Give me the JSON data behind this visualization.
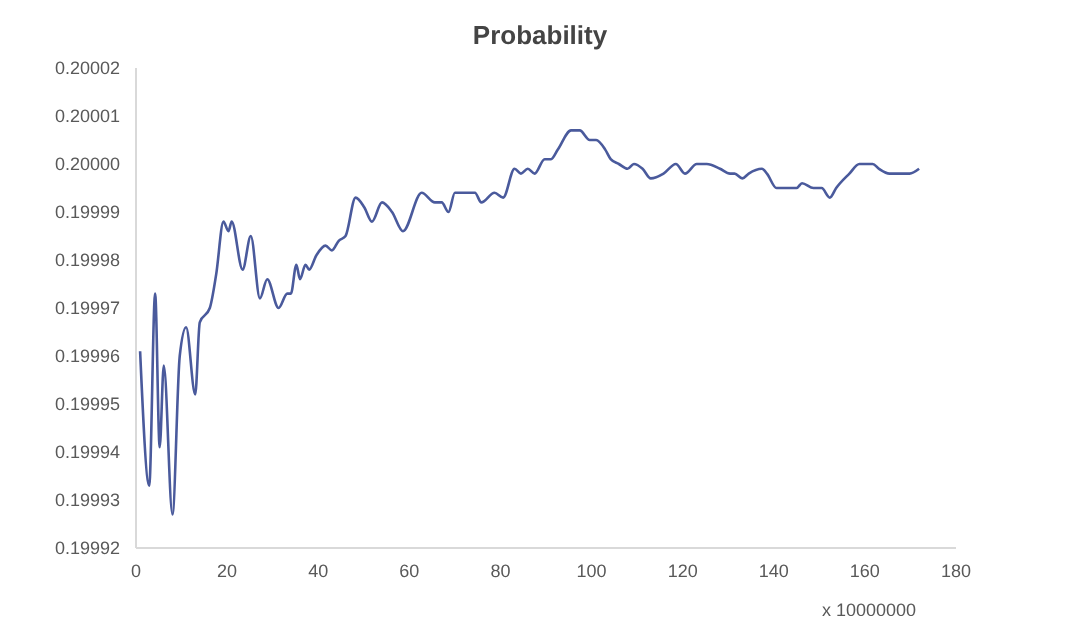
{
  "chart_data": {
    "type": "line",
    "title": "Probability",
    "xlabel": "x 10000000",
    "x": [
      0.9,
      2.9,
      4.2,
      5.2,
      6.1,
      8.0,
      9.6,
      11,
      13,
      14,
      16.2,
      17.6,
      19.2,
      20.3,
      21,
      23.4,
      25.2,
      27.2,
      28.8,
      31.3,
      33.2,
      34,
      35.2,
      36,
      37.2,
      38,
      39.6,
      41.6,
      43,
      44.5,
      46,
      48.2,
      50.1,
      51.8,
      54,
      56.2,
      58.6,
      62.7,
      65.6,
      67.1,
      68.6,
      70,
      74.4,
      75.8,
      78.7,
      80.6,
      83.1,
      84.5,
      86,
      87.5,
      89.7,
      91.1,
      92.6,
      95.5,
      97.4,
      99.6,
      101,
      103,
      104.2,
      106,
      107.9,
      109.3,
      111.2,
      113,
      115.8,
      118.5,
      120.5,
      123.1,
      125.3,
      128.2,
      130.4,
      131.4,
      133.1,
      134.5,
      137.4,
      138.5,
      140.6,
      144.2,
      145,
      146.2,
      148.7,
      150.5,
      152.3,
      153.7,
      156.6,
      158.8,
      161.7,
      163.1,
      165.4,
      166.9,
      169.8,
      171.9
    ],
    "series": [
      {
        "color": "#4a5a9c",
        "values": [
          0.199961,
          0.199933,
          0.199973,
          0.199941,
          0.199958,
          0.199927,
          0.19996,
          0.199966,
          0.199952,
          0.199967,
          0.19997,
          0.199977,
          0.199988,
          0.199986,
          0.199988,
          0.199978,
          0.199985,
          0.199972,
          0.199976,
          0.19997,
          0.199973,
          0.199973,
          0.199979,
          0.199976,
          0.199979,
          0.199978,
          0.199981,
          0.199983,
          0.199982,
          0.199984,
          0.199985,
          0.199993,
          0.199991,
          0.199988,
          0.199992,
          0.19999,
          0.199986,
          0.199994,
          0.199992,
          0.199992,
          0.19999,
          0.199994,
          0.199994,
          0.199992,
          0.199994,
          0.199993,
          0.199999,
          0.199998,
          0.199999,
          0.199998,
          0.200001,
          0.200001,
          0.200003,
          0.200007,
          0.200007,
          0.200005,
          0.200005,
          0.200003,
          0.200001,
          0.2,
          0.199999,
          0.2,
          0.199999,
          0.199997,
          0.199998,
          0.2,
          0.199998,
          0.2,
          0.2,
          0.199999,
          0.199998,
          0.199998,
          0.199997,
          0.199998,
          0.199999,
          0.199998,
          0.199995,
          0.199995,
          0.199995,
          0.199996,
          0.199995,
          0.199995,
          0.199993,
          0.199995,
          0.199998,
          0.2,
          0.2,
          0.199999,
          0.199998,
          0.199998,
          0.199998,
          0.199999
        ]
      }
    ],
    "xlim": [
      0,
      180
    ],
    "xticks": [
      0,
      20,
      40,
      60,
      80,
      100,
      120,
      140,
      160,
      180
    ],
    "ylim": [
      0.19992,
      0.20002
    ],
    "yticks": [
      0.19992,
      0.19993,
      0.19994,
      0.19995,
      0.19996,
      0.19997,
      0.19998,
      0.19999,
      {
        "value": 0.2,
        "label": "0.20000"
      },
      0.20001,
      0.20002
    ],
    "grid": false,
    "legend": false,
    "marker": "none",
    "line_style": "solid"
  }
}
